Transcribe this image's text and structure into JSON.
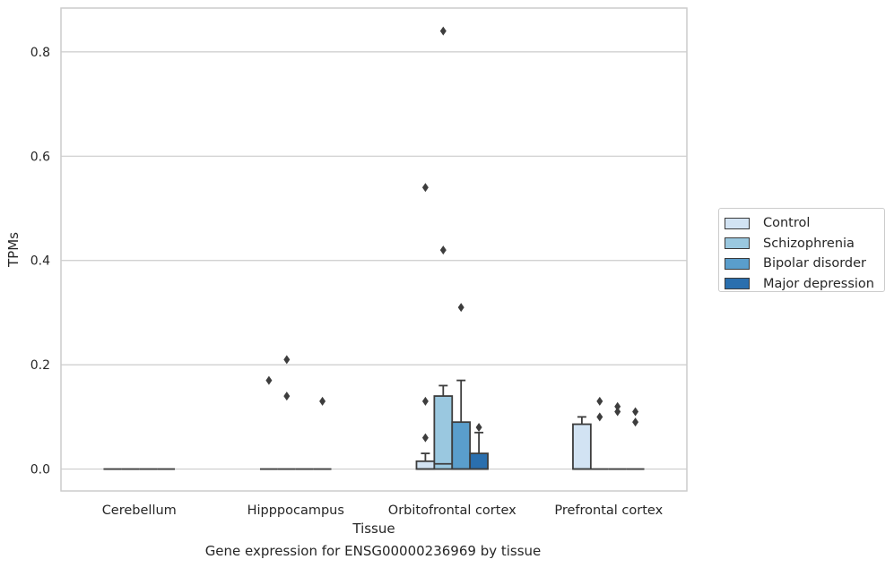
{
  "footer_title": "Gene expression for ENSG00000236969 by tissue",
  "chart_data": {
    "type": "box",
    "xlabel": "Tissue",
    "ylabel": "TPMs",
    "ylim": [
      -0.042,
      0.884
    ],
    "yticks": [
      0.0,
      0.2,
      0.4,
      0.6,
      0.8
    ],
    "ytick_labels": [
      "0.0",
      "0.2",
      "0.4",
      "0.6",
      "0.8"
    ],
    "grid": "horizontal",
    "legend_position": "center-right, outside",
    "categories": [
      "Cerebellum",
      "Hipppocampus",
      "Orbitofrontal cortex",
      "Prefrontal cortex"
    ],
    "series": [
      {
        "name": "Control",
        "color": "#d2e3f3",
        "boxes": [
          {
            "q1": 0,
            "median": 0,
            "q3": 0,
            "whisker_low": 0,
            "whisker_high": 0,
            "outliers": []
          },
          {
            "q1": 0,
            "median": 0,
            "q3": 0,
            "whisker_low": 0,
            "whisker_high": 0,
            "outliers": [
              0.17
            ]
          },
          {
            "q1": 0,
            "median": 0,
            "q3": 0.015,
            "whisker_low": 0,
            "whisker_high": 0.03,
            "outliers": [
              0.06,
              0.13,
              0.54
            ]
          },
          {
            "q1": 0,
            "median": 0,
            "q3": 0.086,
            "whisker_low": 0,
            "whisker_high": 0.1,
            "outliers": []
          }
        ]
      },
      {
        "name": "Schizophrenia",
        "color": "#9ac8e0",
        "boxes": [
          {
            "q1": 0,
            "median": 0,
            "q3": 0,
            "whisker_low": 0,
            "whisker_high": 0,
            "outliers": []
          },
          {
            "q1": 0,
            "median": 0,
            "q3": 0,
            "whisker_low": 0,
            "whisker_high": 0,
            "outliers": [
              0.14,
              0.21
            ]
          },
          {
            "q1": 0,
            "median": 0.01,
            "q3": 0.14,
            "whisker_low": 0,
            "whisker_high": 0.16,
            "outliers": [
              0.42,
              0.84
            ]
          },
          {
            "q1": 0,
            "median": 0,
            "q3": 0,
            "whisker_low": 0,
            "whisker_high": 0,
            "outliers": [
              0.1,
              0.13
            ]
          }
        ]
      },
      {
        "name": "Bipolar disorder",
        "color": "#5a9ecc",
        "boxes": [
          {
            "q1": 0,
            "median": 0,
            "q3": 0,
            "whisker_low": 0,
            "whisker_high": 0,
            "outliers": []
          },
          {
            "q1": 0,
            "median": 0,
            "q3": 0,
            "whisker_low": 0,
            "whisker_high": 0,
            "outliers": []
          },
          {
            "q1": 0,
            "median": 0,
            "q3": 0.09,
            "whisker_low": 0,
            "whisker_high": 0.17,
            "outliers": [
              0.31
            ]
          },
          {
            "q1": 0,
            "median": 0,
            "q3": 0,
            "whisker_low": 0,
            "whisker_high": 0,
            "outliers": [
              0.11,
              0.12
            ]
          }
        ]
      },
      {
        "name": "Major depression",
        "color": "#2a6fae",
        "boxes": [
          {
            "q1": 0,
            "median": 0,
            "q3": 0,
            "whisker_low": 0,
            "whisker_high": 0,
            "outliers": []
          },
          {
            "q1": 0,
            "median": 0,
            "q3": 0,
            "whisker_low": 0,
            "whisker_high": 0,
            "outliers": [
              0.13
            ]
          },
          {
            "q1": 0,
            "median": 0,
            "q3": 0.03,
            "whisker_low": 0,
            "whisker_high": 0.07,
            "outliers": [
              0.08
            ]
          },
          {
            "q1": 0,
            "median": 0,
            "q3": 0,
            "whisker_low": 0,
            "whisker_high": 0,
            "outliers": [
              0.09,
              0.11
            ]
          }
        ]
      }
    ]
  }
}
